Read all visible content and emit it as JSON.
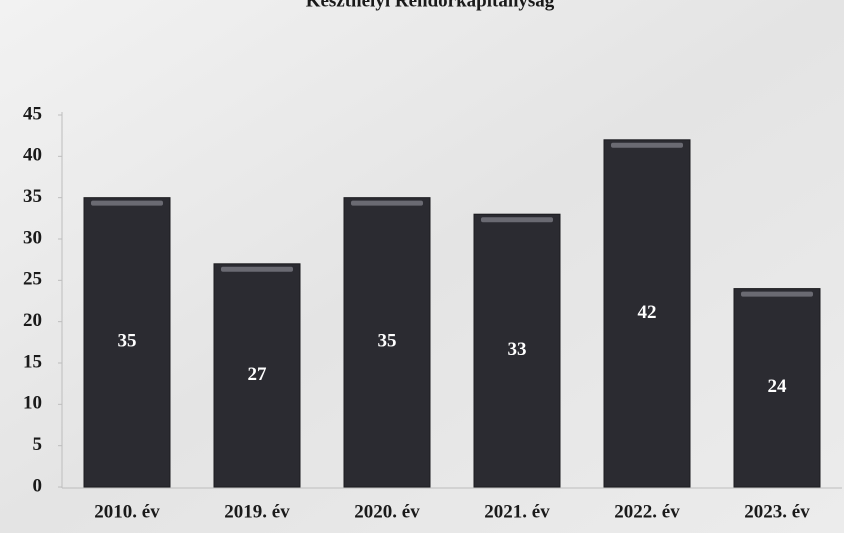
{
  "chart_data": {
    "type": "bar",
    "title": "Keszthelyi Rendőrkapitányság",
    "categories": [
      "2010. év",
      "2019. év",
      "2020. év",
      "2021. év",
      "2022. év",
      "2023. év"
    ],
    "values": [
      35,
      27,
      35,
      33,
      42,
      24
    ],
    "color": "#2b2b31",
    "ylim": [
      0,
      45
    ],
    "yticks": [
      0,
      5,
      10,
      15,
      20,
      25,
      30,
      35,
      40,
      45
    ],
    "grid": false
  }
}
